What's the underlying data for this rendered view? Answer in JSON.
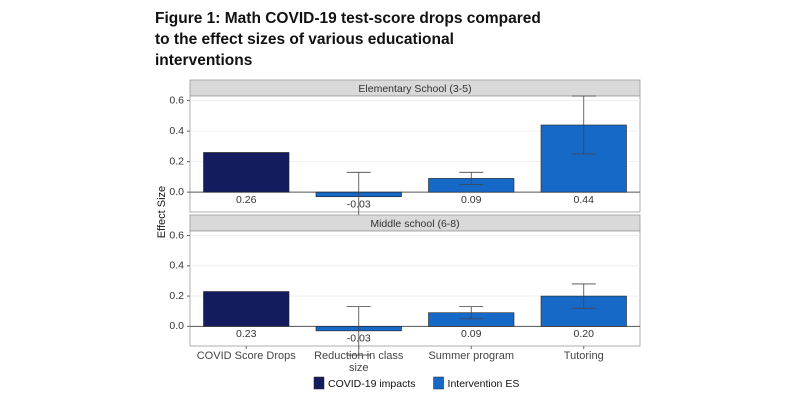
{
  "title": "Figure 1: Math COVID-19 test-score drops compared to the effect sizes of various educational interventions",
  "y_label": "Effect Size",
  "legend": [
    {
      "name": "COVID-19 impacts",
      "color": "#141b5e"
    },
    {
      "name": "Intervention ES",
      "color": "#1769c8"
    }
  ],
  "chart_data": [
    {
      "type": "bar",
      "title": "Elementary School (3-5)",
      "values": [
        0.26,
        -0.03,
        0.09,
        0.44
      ],
      "value_labels": [
        "0.26",
        "-0.03",
        "0.09",
        "0.44"
      ],
      "errors": [
        null,
        0.16,
        0.04,
        0.19
      ],
      "colors": [
        "#141b5e",
        "#1769c8",
        "#1769c8",
        "#1769c8"
      ],
      "ylim": [
        -0.13,
        0.63
      ],
      "yticks": [
        {
          "value": 0,
          "label": "0.0"
        },
        0.2,
        0.4,
        0.6
      ],
      "grid": true
    },
    {
      "type": "bar",
      "title": "Middle school (6-8)",
      "categories": [
        "COVID Score Drops",
        "Reduction in class size",
        "Summer program",
        "Tutoring"
      ],
      "values": [
        0.23,
        -0.03,
        0.09,
        0.2
      ],
      "value_labels": [
        "0.23",
        "-0.03",
        "0.09",
        "0.20"
      ],
      "errors": [
        null,
        0.16,
        0.04,
        0.08
      ],
      "colors": [
        "#141b5e",
        "#1769c8",
        "#1769c8",
        "#1769c8"
      ],
      "ylim": [
        -0.13,
        0.63
      ],
      "yticks": [
        {
          "value": 0,
          "label": "0.0"
        },
        0.2,
        0.4,
        0.6
      ],
      "grid": true
    }
  ]
}
